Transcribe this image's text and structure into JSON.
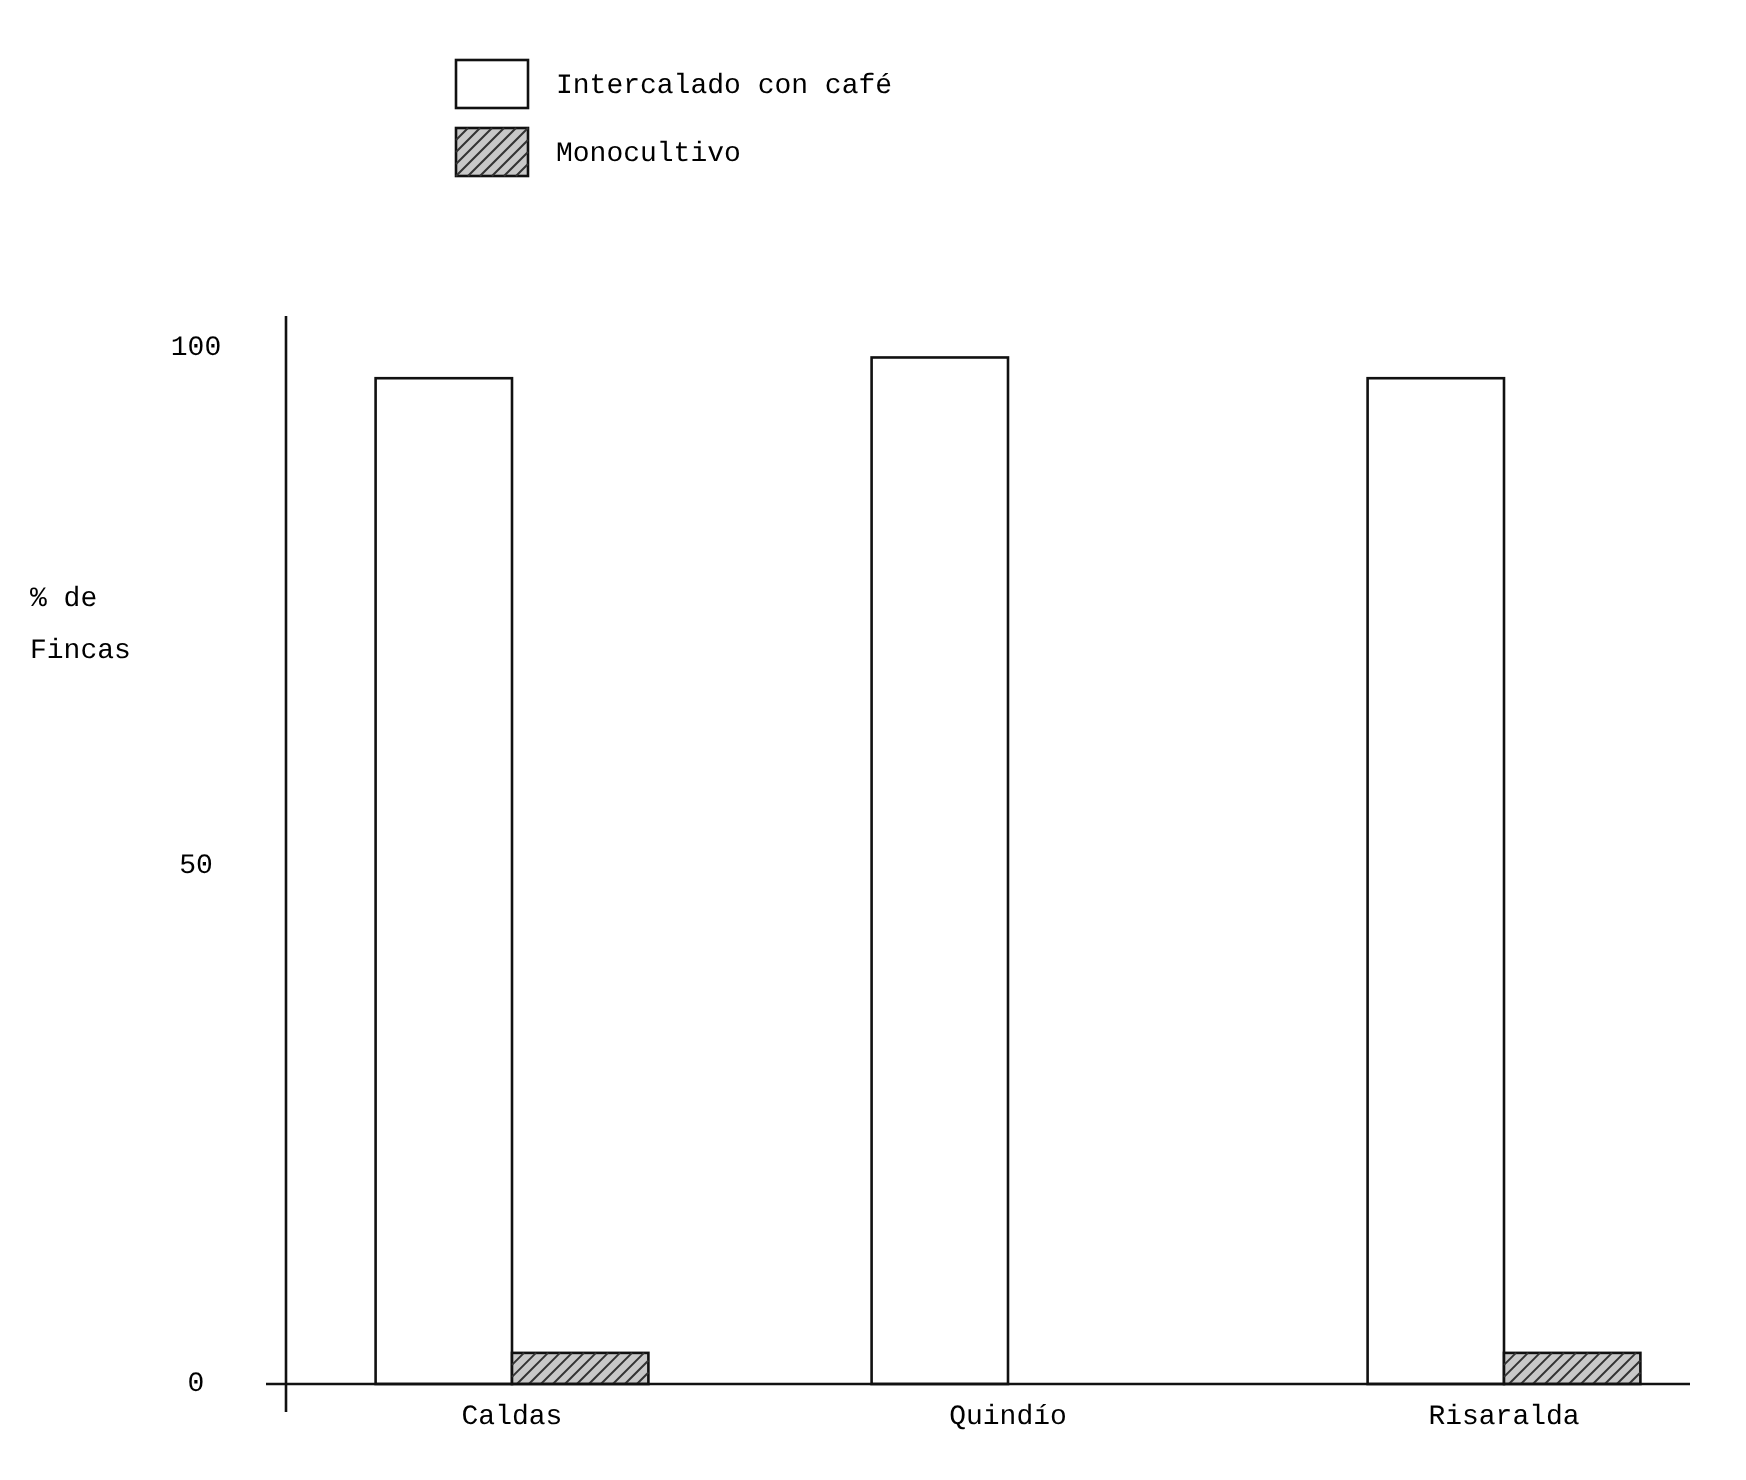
{
  "chart_data": {
    "type": "bar",
    "ylabel": "% de Fincas",
    "categories": [
      "Caldas",
      "Quindío",
      "Risaralda"
    ],
    "series": [
      {
        "name": "Intercalado con café",
        "color": "#ffffff",
        "values": [
          97,
          99,
          97
        ]
      },
      {
        "name": "Monocultivo",
        "color": "#c8c8c8",
        "values": [
          3,
          null,
          3
        ]
      }
    ],
    "ylim": [
      0,
      103
    ],
    "yticks": [
      0,
      50,
      100
    ],
    "grid": false,
    "legend": "top left"
  }
}
